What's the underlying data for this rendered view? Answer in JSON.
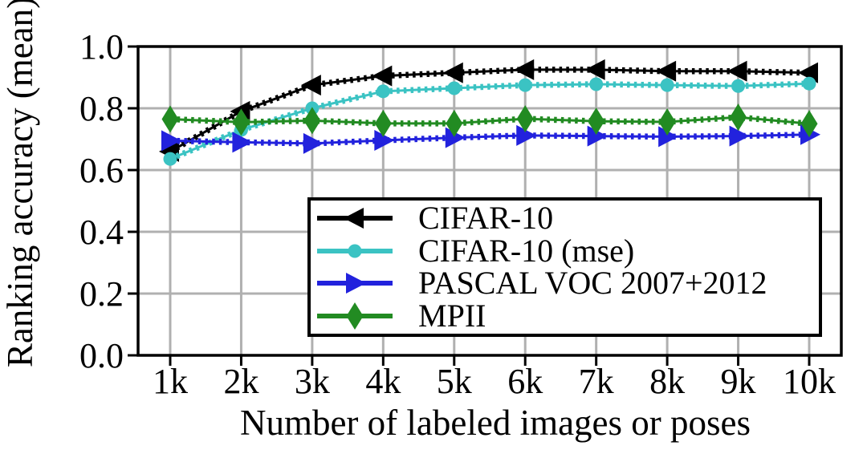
{
  "figure": {
    "background": "#ffffff",
    "plot_border_color": "#000000",
    "grid_color": "#b0b0b0",
    "tick_color": "#000000",
    "text_color": "#000000"
  },
  "chart_data": {
    "type": "line",
    "title": "",
    "xlabel": "Number of labeled images or poses",
    "ylabel": "Ranking accuracy (mean)",
    "x_tick_labels": [
      "1k",
      "2k",
      "3k",
      "4k",
      "5k",
      "6k",
      "7k",
      "8k",
      "9k",
      "10k"
    ],
    "x_values_thousands": [
      1,
      2,
      3,
      4,
      5,
      6,
      7,
      8,
      9,
      10
    ],
    "y_tick_labels": [
      "0.0",
      "0.2",
      "0.4",
      "0.6",
      "0.8",
      "1.0"
    ],
    "y_ticks": [
      0.0,
      0.2,
      0.4,
      0.6,
      0.8,
      1.0
    ],
    "ylim": [
      0.0,
      1.0
    ],
    "grid": "on",
    "line_style": "dotted-over-solid",
    "legend": {
      "position": "inside lower-right",
      "border": true
    },
    "series": [
      {
        "name": "CIFAR-10",
        "color": "#000000",
        "marker": "triangle-left",
        "values": [
          0.66,
          0.79,
          0.875,
          0.905,
          0.915,
          0.925,
          0.925,
          0.92,
          0.92,
          0.915
        ]
      },
      {
        "name": "CIFAR-10 (mse)",
        "color": "#3bc3c3",
        "marker": "circle",
        "values": [
          0.636,
          0.73,
          0.8,
          0.855,
          0.865,
          0.875,
          0.878,
          0.875,
          0.872,
          0.88
        ]
      },
      {
        "name": "PASCAL VOC 2007+2012",
        "color": "#2222dd",
        "marker": "triangle-right",
        "values": [
          0.695,
          0.69,
          0.686,
          0.696,
          0.705,
          0.712,
          0.71,
          0.708,
          0.71,
          0.715
        ]
      },
      {
        "name": "MPII",
        "color": "#228b22",
        "marker": "diamond",
        "values": [
          0.765,
          0.755,
          0.76,
          0.751,
          0.751,
          0.766,
          0.758,
          0.756,
          0.771,
          0.75
        ]
      }
    ]
  }
}
